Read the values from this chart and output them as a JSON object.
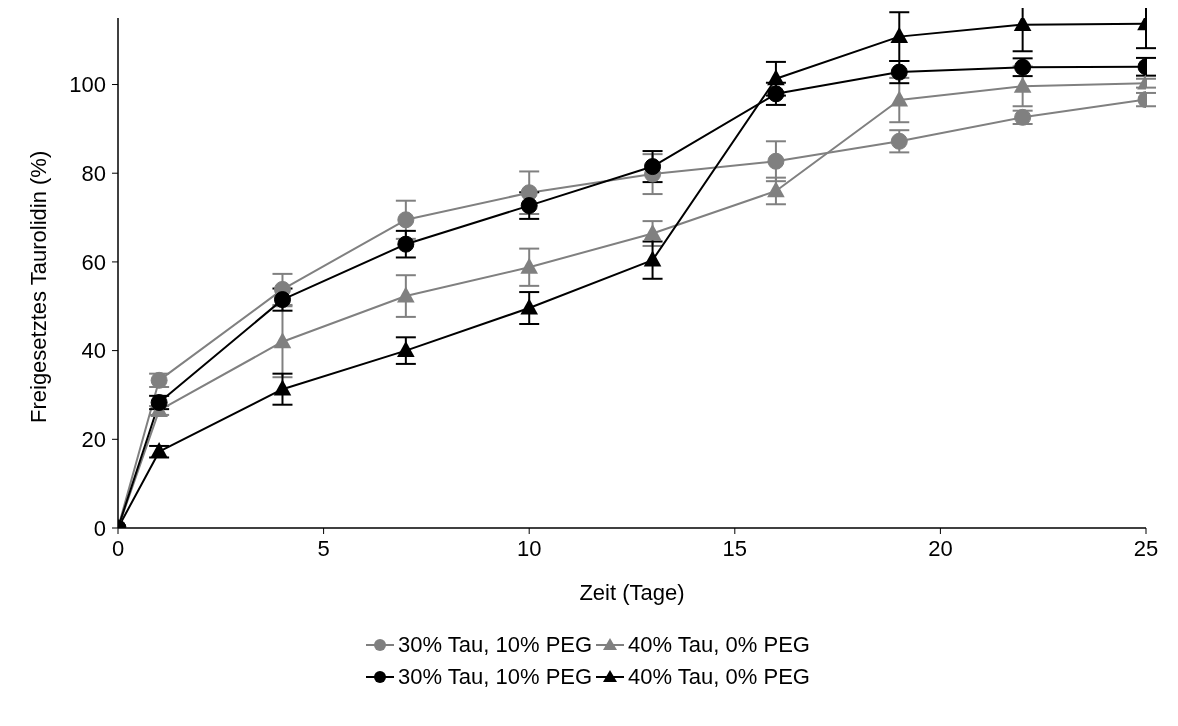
{
  "chart_data": {
    "type": "line",
    "xlabel": "Zeit (Tage)",
    "ylabel": "Freigesetztes Taurolidin (%)",
    "x": [
      0,
      1,
      4,
      7,
      10,
      13,
      16,
      19,
      22,
      25
    ],
    "xlim": [
      0,
      25
    ],
    "xticks": [
      0,
      5,
      10,
      15,
      20,
      25
    ],
    "ylim": [
      0,
      115
    ],
    "yticks": [
      0,
      20,
      40,
      60,
      80,
      100
    ],
    "grid": false,
    "legend": "bottom",
    "line_style": "solid",
    "series": [
      {
        "name": "30% Tau, 10% PEG",
        "color": "#808080",
        "marker": "circle",
        "values": [
          0,
          33.3,
          53.8,
          69.5,
          75.6,
          79.8,
          82.7,
          87.2,
          92.6,
          96.6
        ],
        "errors": [
          null,
          1.5,
          3.5,
          4.3,
          4.8,
          4.5,
          4.5,
          2.5,
          1.5,
          1.5
        ]
      },
      {
        "name": "40% Tau, 0% PEG",
        "color": "#808080",
        "marker": "triangle",
        "values": [
          0,
          26.5,
          42,
          52.3,
          58.8,
          66.4,
          76,
          96.5,
          99.6,
          100.3
        ],
        "errors": [
          null,
          1,
          8,
          4.7,
          4.2,
          2.8,
          3,
          5,
          4.5,
          1
        ]
      },
      {
        "name": "30% Tau, 10% PEG",
        "color": "#000000",
        "marker": "circle",
        "values": [
          0,
          28.3,
          51.5,
          64,
          72.7,
          81.5,
          97.9,
          102.8,
          103.9,
          104
        ],
        "errors": [
          null,
          1.5,
          2.5,
          3,
          3,
          3.5,
          2.5,
          2.5,
          2,
          2
        ]
      },
      {
        "name": "40% Tau, 0% PEG",
        "color": "#000000",
        "marker": "triangle",
        "values": [
          0,
          17.2,
          31.3,
          40,
          49.6,
          60.4,
          101.3,
          110.8,
          113.5,
          113.7
        ],
        "errors": [
          null,
          1.3,
          3.5,
          3,
          3.6,
          4.2,
          3.8,
          5.5,
          6,
          5.5
        ]
      }
    ]
  }
}
